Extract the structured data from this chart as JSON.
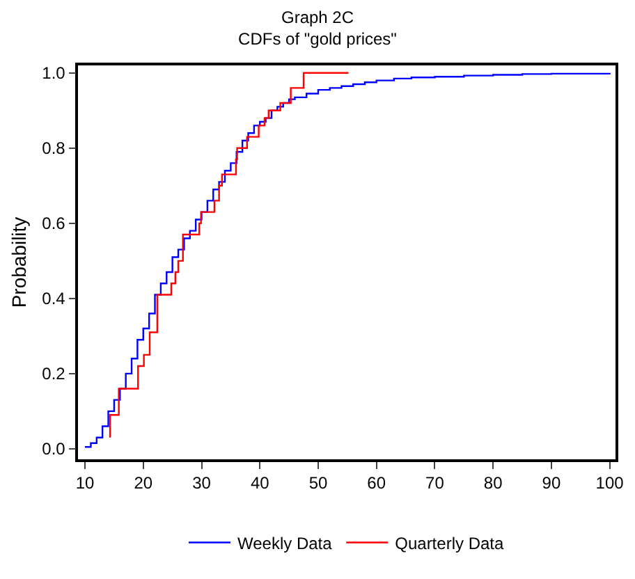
{
  "chart_data": {
    "type": "step",
    "title": "Graph 2C",
    "subtitle": "CDFs of \"gold prices\"",
    "ylabel": "Probability",
    "series": [
      {
        "name": "Weekly Data",
        "color": "#0000ff",
        "x": [
          10,
          11,
          12,
          13,
          14,
          15,
          16,
          17,
          18,
          19,
          20,
          21,
          22,
          23,
          24,
          25,
          26,
          27,
          28,
          29,
          30,
          31,
          32,
          33,
          34,
          35,
          36,
          37,
          38,
          39,
          40,
          41,
          42,
          43,
          44,
          45,
          46,
          48,
          50,
          52,
          54,
          56,
          58,
          60,
          63,
          66,
          70,
          75,
          80,
          85,
          90,
          100
        ],
        "values": [
          0.005,
          0.015,
          0.03,
          0.06,
          0.1,
          0.13,
          0.16,
          0.2,
          0.24,
          0.29,
          0.32,
          0.36,
          0.41,
          0.44,
          0.47,
          0.51,
          0.53,
          0.56,
          0.58,
          0.61,
          0.63,
          0.66,
          0.69,
          0.71,
          0.74,
          0.76,
          0.79,
          0.82,
          0.84,
          0.86,
          0.87,
          0.88,
          0.9,
          0.91,
          0.92,
          0.93,
          0.935,
          0.945,
          0.955,
          0.96,
          0.965,
          0.97,
          0.975,
          0.98,
          0.985,
          0.988,
          0.99,
          0.993,
          0.995,
          0.997,
          0.998,
          1.0
        ]
      },
      {
        "name": "Quarterly Data",
        "color": "#ff0000",
        "x": [
          14.3,
          14.3,
          15.8,
          19.1,
          20.1,
          21.1,
          22.4,
          24.8,
          25.5,
          26,
          26.8,
          29.6,
          29.9,
          32.2,
          33,
          33.5,
          35.9,
          36.1,
          37.8,
          39.8,
          40.8,
          41.5,
          43.5,
          45.3,
          47.5,
          55.2
        ],
        "values": [
          0.03,
          0.09,
          0.16,
          0.22,
          0.25,
          0.31,
          0.41,
          0.44,
          0.47,
          0.5,
          0.57,
          0.6,
          0.63,
          0.66,
          0.7,
          0.73,
          0.77,
          0.8,
          0.83,
          0.86,
          0.88,
          0.9,
          0.92,
          0.96,
          1.0,
          1.0
        ]
      }
    ],
    "xlim": [
      8.8,
      101
    ],
    "xticks": [
      10,
      20,
      30,
      40,
      50,
      60,
      70,
      80,
      90,
      100
    ],
    "ylim": [
      -0.028,
      1.02
    ],
    "yticks": [
      {
        "value": 0,
        "label": "0.0"
      },
      {
        "value": 0.2,
        "label": "0.2"
      },
      {
        "value": 0.4,
        "label": "0.4"
      },
      {
        "value": 0.6,
        "label": "0.6"
      },
      {
        "value": 0.8,
        "label": "0.8"
      },
      {
        "value": 1,
        "label": "1.0"
      }
    ],
    "grid": false,
    "legend": "bottom",
    "line_style": "solid"
  }
}
